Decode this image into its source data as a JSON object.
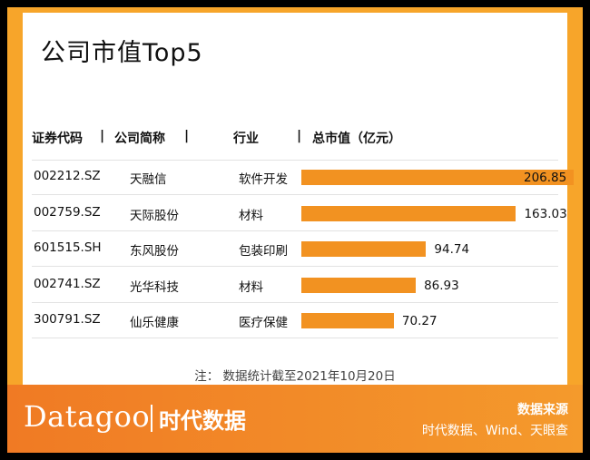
{
  "title": "公司市值Top5",
  "headers": {
    "code": "证券代码",
    "name": "公司简称",
    "industry": "行业",
    "cap": "总市值（亿元）",
    "separator": "|"
  },
  "chart_data": {
    "type": "bar",
    "orientation": "horizontal",
    "title": "公司市值Top5",
    "columns": [
      "证券代码",
      "公司简称",
      "行业",
      "总市值（亿元）"
    ],
    "rows": [
      {
        "code": "002212.SZ",
        "name": "天融信",
        "industry": "软件开发",
        "value": 206.85,
        "label": "206.85"
      },
      {
        "code": "002759.SZ",
        "name": "天际股份",
        "industry": "材料",
        "value": 163.03,
        "label": "163.03"
      },
      {
        "code": "601515.SH",
        "name": "东风股份",
        "industry": "包装印刷",
        "value": 94.74,
        "label": "94.74"
      },
      {
        "code": "002741.SZ",
        "name": "光华科技",
        "industry": "材料",
        "value": 86.93,
        "label": "86.93"
      },
      {
        "code": "300791.SZ",
        "name": "仙乐健康",
        "industry": "医疗保健",
        "value": 70.27,
        "label": "70.27"
      }
    ],
    "bar_color": "#f29221"
  },
  "note": "注：  数据统计截至2021年10月20日",
  "footer": {
    "brand": "Datagoo",
    "brand_cn": "时代数据",
    "source_title": "数据来源",
    "source_text": "时代数据、Wind、天眼查"
  },
  "colors": {
    "frame": "#f7a52a",
    "footer": "#f07a24",
    "bar": "#f29221"
  }
}
